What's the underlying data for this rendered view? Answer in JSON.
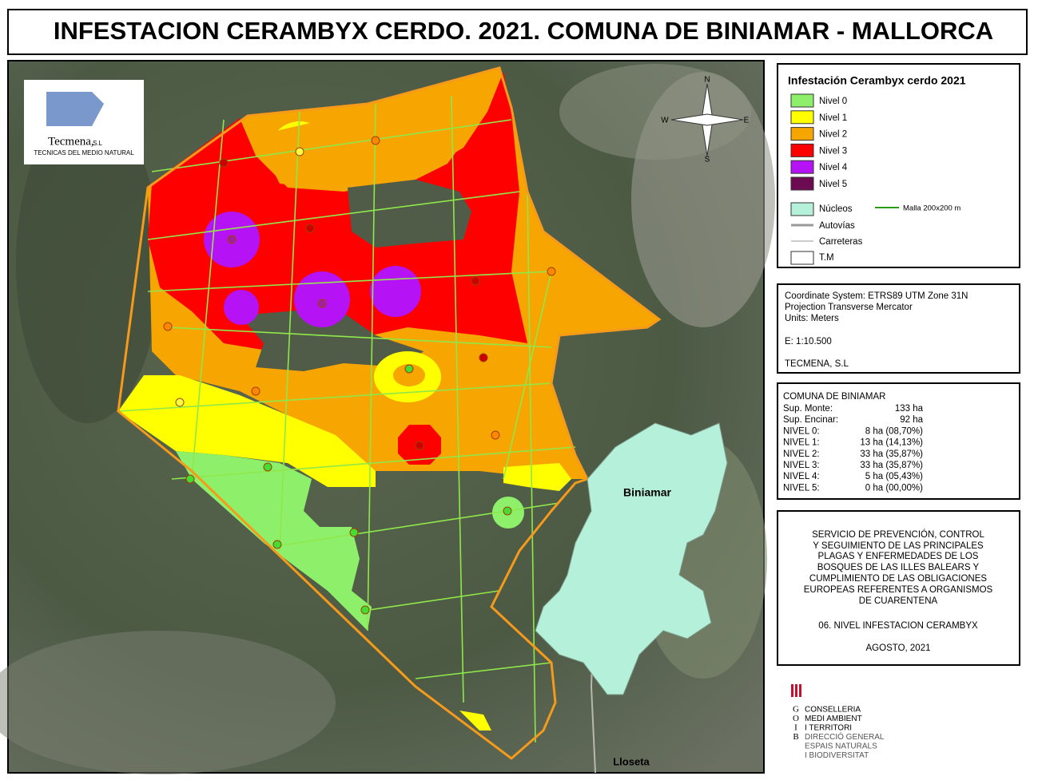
{
  "title": "INFESTACION CERAMBYX CERDO. 2021. COMUNA DE BINIAMAR - MALLORCA",
  "logo": {
    "name": "Tecmena,",
    "suffix": "S.L",
    "subtitle": "TECNICAS DEL MEDIO NATURAL"
  },
  "compass": {
    "n": "N",
    "s": "S",
    "w": "W",
    "e": "E"
  },
  "map_labels": [
    "Biniamar",
    "Lloseta"
  ],
  "legend": {
    "title": "Infestación Cerambyx cerdo 2021",
    "levels": [
      {
        "label": "Nivel 0",
        "color": "#8ef06a"
      },
      {
        "label": "Nivel 1",
        "color": "#ffff00"
      },
      {
        "label": "Nivel 2",
        "color": "#f7a500"
      },
      {
        "label": "Nivel 3",
        "color": "#ff0000"
      },
      {
        "label": "Nivel 4",
        "color": "#b513f5"
      },
      {
        "label": "Nivel 5",
        "color": "#6c0a52"
      }
    ],
    "items": [
      "Núcleos",
      "Malla 200x200 m",
      "Autovías",
      "Carreteras",
      "T.M"
    ]
  },
  "info": [
    "Coordinate System: ETRS89 UTM Zone 31N",
    "Projection Transverse Mercator",
    "Units: Meters",
    "E: 1:10.500",
    "TECMENA, S.L"
  ],
  "stats": {
    "title": "COMUNA DE BINIAMAR",
    "rows": [
      [
        "Sup. Monte:",
        "133 ha"
      ],
      [
        "Sup. Encinar:",
        "92 ha"
      ],
      [
        "NIVEL 0:",
        "8 ha (08,70%)"
      ],
      [
        "NIVEL 1:",
        "13 ha (14,13%)"
      ],
      [
        "NIVEL 2:",
        "33 ha (35,87%)"
      ],
      [
        "NIVEL 3:",
        "33 ha (35,87%)"
      ],
      [
        "NIVEL 4:",
        "5 ha (05,43%)"
      ],
      [
        "NIVEL 5:",
        "0 ha (00,00%)"
      ]
    ]
  },
  "description": [
    "SERVICIO DE PREVENCIÓN, CONTROL",
    "Y SEGUIMIENTO DE LAS PRINCIPALES",
    "PLAGAS Y ENFERMEDADES DE LOS",
    "BOSQUES DE LAS ILLES BALEARS Y",
    "CUMPLIMIENTO DE LAS OBLIGACIONES",
    "EUROPEAS REFERENTES A ORGANISMOS",
    "DE CUARENTENA",
    "06. NIVEL INFESTACION CERAMBYX",
    "AGOSTO, 2021"
  ],
  "goib": {
    "letters": [
      "G",
      "O",
      "I",
      "B"
    ],
    "lines": [
      "CONSELLERIA",
      "MEDI AMBIENT",
      "I TERRITORI",
      "DIRECCIÓ GENERAL",
      "ESPAIS NATURALS",
      "I BIODIVERSITAT"
    ]
  }
}
